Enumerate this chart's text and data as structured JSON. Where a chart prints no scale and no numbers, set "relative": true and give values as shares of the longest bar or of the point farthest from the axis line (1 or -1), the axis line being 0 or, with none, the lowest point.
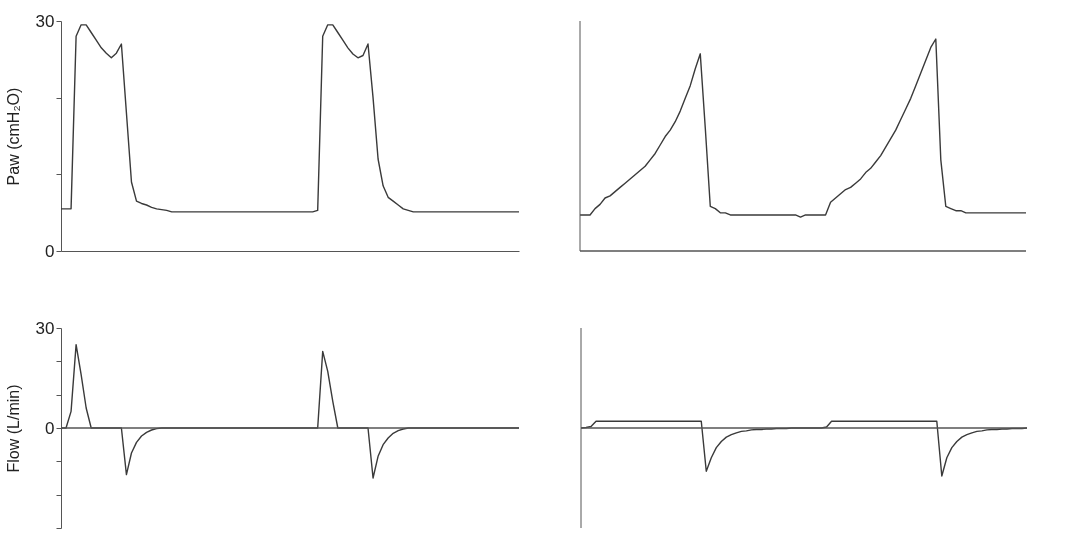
{
  "chart_data": [
    {
      "type": "line",
      "ylabel": "Paw (cmH₂O)",
      "tick_labels": "y",
      "ylim": [
        0,
        30
      ],
      "yticks": [
        0,
        {
          "value": 10,
          "label": null
        },
        {
          "value": 20,
          "label": null
        },
        30
      ],
      "categories": [
        null,
        null,
        null,
        null,
        null,
        null,
        null,
        null,
        null,
        null,
        null,
        null,
        null,
        null,
        null,
        null,
        null,
        null,
        null,
        null,
        null,
        null,
        null,
        null,
        null,
        null,
        null,
        null,
        null,
        null,
        null,
        null,
        null,
        null,
        null,
        null,
        null,
        null,
        null,
        null,
        null,
        null,
        null,
        null,
        null,
        null,
        null,
        null,
        null,
        null,
        null,
        null,
        null,
        null,
        null,
        null,
        null,
        null,
        null,
        null,
        null,
        null,
        null,
        null,
        null,
        null,
        null,
        null,
        null,
        null,
        null,
        null,
        null,
        null,
        null,
        null,
        null,
        null,
        null,
        null,
        null,
        null,
        null,
        null,
        null,
        null,
        null,
        null,
        null,
        null,
        null,
        null
      ],
      "series": [
        {
          "color": "#3a3a3a",
          "values": [
            5.5,
            5.5,
            5.5,
            28,
            29.5,
            29.5,
            28.5,
            27.5,
            26.5,
            25.8,
            25.2,
            25.8,
            27,
            18,
            9,
            6.5,
            6.2,
            6,
            5.7,
            5.5,
            5.4,
            5.3,
            5.1,
            5.1,
            5.1,
            5.1,
            5.1,
            5.1,
            5.1,
            5.1,
            5.1,
            5.1,
            5.1,
            5.1,
            5.1,
            5.1,
            5.1,
            5.1,
            5.1,
            5.1,
            5.1,
            5.1,
            5.1,
            5.1,
            5.1,
            5.1,
            5.1,
            5.1,
            5.1,
            5.1,
            5.1,
            5.3,
            28,
            29.5,
            29.5,
            28.5,
            27.5,
            26.5,
            25.7,
            25.2,
            25.5,
            27,
            20,
            12,
            8.5,
            7,
            6.5,
            6,
            5.5,
            5.3,
            5.1,
            5.1,
            5.1,
            5.1,
            5.1,
            5.1,
            5.1,
            5.1,
            5.1,
            5.1,
            5.1,
            5.1,
            5.1,
            5.1,
            5.1,
            5.1,
            5.1,
            5.1,
            5.1,
            5.1,
            5.1,
            5.1
          ]
        }
      ]
    },
    {
      "type": "line",
      "relative": true,
      "tick_labels": false,
      "ref_lines": [
        {
          "axis": "y",
          "value": 0,
          "color": "#555555"
        }
      ],
      "categories": [
        null,
        null,
        null,
        null,
        null,
        null,
        null,
        null,
        null,
        null,
        null,
        null,
        null,
        null,
        null,
        null,
        null,
        null,
        null,
        null,
        null,
        null,
        null,
        null,
        null,
        null,
        null,
        null,
        null,
        null,
        null,
        null,
        null,
        null,
        null,
        null,
        null,
        null,
        null,
        null,
        null,
        null,
        null,
        null,
        null,
        null,
        null,
        null,
        null,
        null,
        null,
        null,
        null,
        null,
        null,
        null,
        null,
        null,
        null,
        null,
        null,
        null,
        null,
        null,
        null,
        null,
        null,
        null,
        null,
        null,
        null,
        null,
        null,
        null,
        null,
        null,
        null,
        null,
        null,
        null,
        null,
        null,
        null,
        null,
        null,
        null,
        null,
        null,
        null,
        null
      ],
      "series": [
        {
          "color": "#3a3a3a",
          "values": [
            0.17,
            0.17,
            0.17,
            0.2,
            0.22,
            0.25,
            0.26,
            0.28,
            0.3,
            0.32,
            0.34,
            0.36,
            0.38,
            0.4,
            0.43,
            0.46,
            0.5,
            0.54,
            0.57,
            0.61,
            0.66,
            0.72,
            0.78,
            0.86,
            0.93,
            0.58,
            0.21,
            0.2,
            0.18,
            0.18,
            0.17,
            0.17,
            0.17,
            0.17,
            0.17,
            0.17,
            0.17,
            0.17,
            0.17,
            0.17,
            0.17,
            0.17,
            0.17,
            0.17,
            0.16,
            0.17,
            0.17,
            0.17,
            0.17,
            0.17,
            0.23,
            0.25,
            0.27,
            0.29,
            0.3,
            0.32,
            0.34,
            0.37,
            0.39,
            0.42,
            0.45,
            0.49,
            0.53,
            0.57,
            0.62,
            0.67,
            0.72,
            0.78,
            0.84,
            0.9,
            0.96,
            1,
            0.43,
            0.21,
            0.2,
            0.19,
            0.19,
            0.18,
            0.18,
            0.18,
            0.18,
            0.18,
            0.18,
            0.18,
            0.18,
            0.18,
            0.18,
            0.18,
            0.18,
            0.18
          ]
        }
      ]
    },
    {
      "type": "line",
      "ylabel": "Flow (L/min)",
      "tick_labels": "y",
      "ylim": [
        -30,
        30
      ],
      "yticks": [
        {
          "value": -30,
          "label": null
        },
        {
          "value": -20,
          "label": null
        },
        {
          "value": -10,
          "label": null
        },
        0,
        {
          "value": 10,
          "label": null
        },
        {
          "value": 20,
          "label": null
        },
        30
      ],
      "ref_lines": [
        {
          "axis": "y",
          "value": 0,
          "color": "#555555"
        }
      ],
      "categories": [
        null,
        null,
        null,
        null,
        null,
        null,
        null,
        null,
        null,
        null,
        null,
        null,
        null,
        null,
        null,
        null,
        null,
        null,
        null,
        null,
        null,
        null,
        null,
        null,
        null,
        null,
        null,
        null,
        null,
        null,
        null,
        null,
        null,
        null,
        null,
        null,
        null,
        null,
        null,
        null,
        null,
        null,
        null,
        null,
        null,
        null,
        null,
        null,
        null,
        null,
        null,
        null,
        null,
        null,
        null,
        null,
        null,
        null,
        null,
        null,
        null,
        null,
        null,
        null,
        null,
        null,
        null,
        null,
        null,
        null,
        null,
        null,
        null,
        null,
        null,
        null,
        null,
        null,
        null,
        null,
        null,
        null,
        null,
        null,
        null,
        null,
        null,
        null,
        null,
        null,
        null,
        null
      ],
      "series": [
        {
          "color": "#3a3a3a",
          "values": [
            0,
            0,
            5,
            25,
            16,
            6,
            0,
            0,
            0,
            0,
            0,
            0,
            0,
            -14,
            -7.5,
            -4.3,
            -2.4,
            -1.3,
            -0.6,
            -0.2,
            0,
            0,
            0,
            0,
            0,
            0,
            0,
            0,
            0,
            0,
            0,
            0,
            0,
            0,
            0,
            0,
            0,
            0,
            0,
            0,
            0,
            0,
            0,
            0,
            0,
            0,
            0,
            0,
            0,
            0,
            0,
            0,
            23,
            17,
            8,
            0,
            0,
            0,
            0,
            0,
            0,
            0,
            -15,
            -8.5,
            -5,
            -3,
            -1.6,
            -0.8,
            -0.3,
            0,
            0,
            0,
            0,
            0,
            0,
            0,
            0,
            0,
            0,
            0,
            0,
            0,
            0,
            0,
            0,
            0,
            0,
            0,
            0,
            0,
            0,
            0
          ]
        }
      ]
    },
    {
      "type": "line",
      "relative": true,
      "tick_labels": false,
      "ref_lines": [
        {
          "axis": "y",
          "value": 0,
          "color": "#555555"
        }
      ],
      "categories": [
        null,
        null,
        null,
        null,
        null,
        null,
        null,
        null,
        null,
        null,
        null,
        null,
        null,
        null,
        null,
        null,
        null,
        null,
        null,
        null,
        null,
        null,
        null,
        null,
        null,
        null,
        null,
        null,
        null,
        null,
        null,
        null,
        null,
        null,
        null,
        null,
        null,
        null,
        null,
        null,
        null,
        null,
        null,
        null,
        null,
        null,
        null,
        null,
        null,
        null,
        null,
        null,
        null,
        null,
        null,
        null,
        null,
        null,
        null,
        null,
        null,
        null,
        null,
        null,
        null,
        null,
        null,
        null,
        null,
        null,
        null,
        null,
        null,
        null,
        null,
        null,
        null,
        null,
        null,
        null,
        null,
        null,
        null,
        null,
        null,
        null,
        null,
        null,
        null,
        null
      ],
      "series": [
        {
          "color": "#3a3a3a",
          "values": [
            0,
            0.01,
            0.03,
            0.14,
            0.14,
            0.14,
            0.14,
            0.14,
            0.14,
            0.14,
            0.14,
            0.14,
            0.14,
            0.14,
            0.14,
            0.14,
            0.14,
            0.14,
            0.14,
            0.14,
            0.14,
            0.14,
            0.14,
            0.14,
            0.14,
            -0.9,
            -0.62,
            -0.41,
            -0.28,
            -0.19,
            -0.14,
            -0.1,
            -0.07,
            -0.06,
            -0.04,
            -0.03,
            -0.03,
            -0.02,
            -0.02,
            -0.01,
            -0.01,
            -0.01,
            0,
            0,
            0,
            0,
            0,
            0,
            0,
            0.02,
            0.14,
            0.14,
            0.14,
            0.14,
            0.14,
            0.14,
            0.14,
            0.14,
            0.14,
            0.14,
            0.14,
            0.14,
            0.14,
            0.14,
            0.14,
            0.14,
            0.14,
            0.14,
            0.14,
            0.14,
            0.14,
            0.14,
            -1,
            -0.62,
            -0.41,
            -0.28,
            -0.19,
            -0.14,
            -0.1,
            -0.07,
            -0.06,
            -0.04,
            -0.03,
            -0.03,
            -0.02,
            -0.02,
            -0.01,
            -0.01,
            -0.01,
            0
          ]
        }
      ]
    }
  ]
}
